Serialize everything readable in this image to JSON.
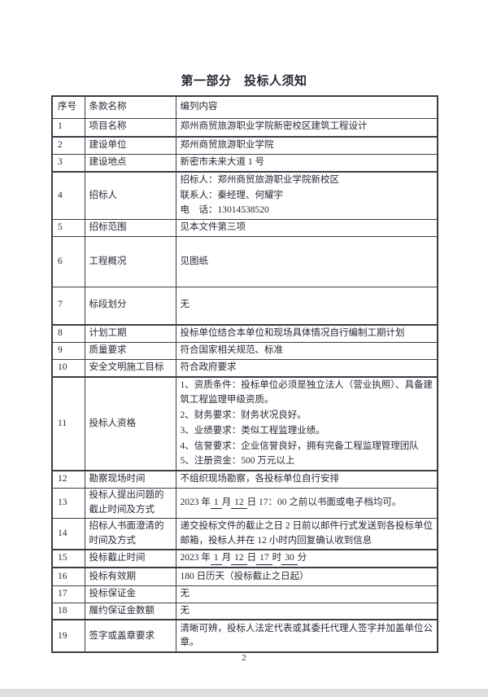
{
  "page": {
    "title": "第一部分　投标人须知",
    "page_number": "2"
  },
  "table": {
    "headers": [
      "序号",
      "条款名称",
      "编列内容"
    ],
    "rows": [
      {
        "no": "1",
        "name": "项目名称",
        "content": [
          "郑州商贸旅游职业学院新密校区建筑工程设计"
        ]
      },
      {
        "no": "2",
        "name": "建设单位",
        "content": [
          "郑州商贸旅游职业学院"
        ]
      },
      {
        "no": "3",
        "name": "建设地点",
        "content": [
          "新密市未来大道 1 号"
        ]
      },
      {
        "no": "4",
        "name": "招标人",
        "content": [
          "招标人：郑州商贸旅游职业学院新校区",
          "联系人：秦经理、何耀宇",
          "电　话：13014538520"
        ]
      },
      {
        "no": "5",
        "name": "招标范围",
        "content": [
          "见本文件第三项"
        ]
      },
      {
        "no": "6",
        "name": "工程概况",
        "content": [
          "见图纸"
        ]
      },
      {
        "no": "7",
        "name": "标段划分",
        "content": [
          "无"
        ]
      },
      {
        "no": "8",
        "name": "计划工期",
        "content": [
          "投标单位结合本单位和现场具体情况自行编制工期计划"
        ]
      },
      {
        "no": "9",
        "name": "质量要求",
        "content": [
          "符合国家相关规范、标准"
        ]
      },
      {
        "no": "10",
        "name": "安全文明施工目标",
        "content": [
          "符合政府要求"
        ]
      },
      {
        "no": "11",
        "name": "投标人资格",
        "content": [
          "1、资质条件：投标单位必须是独立法人（营业执照）、具备建筑工程监理甲级资质。",
          "2、财务要求：财务状况良好。",
          "3、业绩要求：类似工程监理业绩。",
          "4、信誉要求：企业信誉良好，拥有完备工程监理管理团队",
          "5、注册资金：500 万元以上"
        ]
      },
      {
        "no": "12",
        "name": "勘察现场时间",
        "content": [
          "不组织现场勘察，各投标单位自行安排"
        ]
      },
      {
        "no": "13",
        "name": "投标人提出问题的截止时间及方式",
        "content": [
          [
            {
              "t": "2023 年"
            },
            {
              "t": "1",
              "u": true
            },
            {
              "t": "月"
            },
            {
              "t": "12",
              "u": true
            },
            {
              "t": "日 17：00 之前以书面或电子档均可。"
            }
          ]
        ]
      },
      {
        "no": "14",
        "name": "招标人书面澄清的时间及方式",
        "content": [
          "递交投标文件的截止之日 2 日前以邮件行式发送到各投标单位邮箱，投标人并在 12 小时内回复确认收到信息"
        ]
      },
      {
        "no": "15",
        "name": "投标截止时间",
        "content": [
          [
            {
              "t": "2023 年"
            },
            {
              "t": "1",
              "u": true
            },
            {
              "t": "月"
            },
            {
              "t": "12",
              "u": true
            },
            {
              "t": "日"
            },
            {
              "t": "17",
              "u": true
            },
            {
              "t": "时"
            },
            {
              "t": "30",
              "u": true
            },
            {
              "t": "分"
            }
          ]
        ]
      },
      {
        "no": "16",
        "name": "投标有效期",
        "content": [
          "180 日历天（投标截止之日起）"
        ]
      },
      {
        "no": "17",
        "name": "投标保证金",
        "content": [
          "无"
        ]
      },
      {
        "no": "18",
        "name": "履约保证金数额",
        "content": [
          "无"
        ]
      },
      {
        "no": "19",
        "name": "签字或盖章要求",
        "content": [
          "清晰可辨，投标人法定代表或其委托代理人签字并加盖单位公章。"
        ]
      }
    ]
  }
}
